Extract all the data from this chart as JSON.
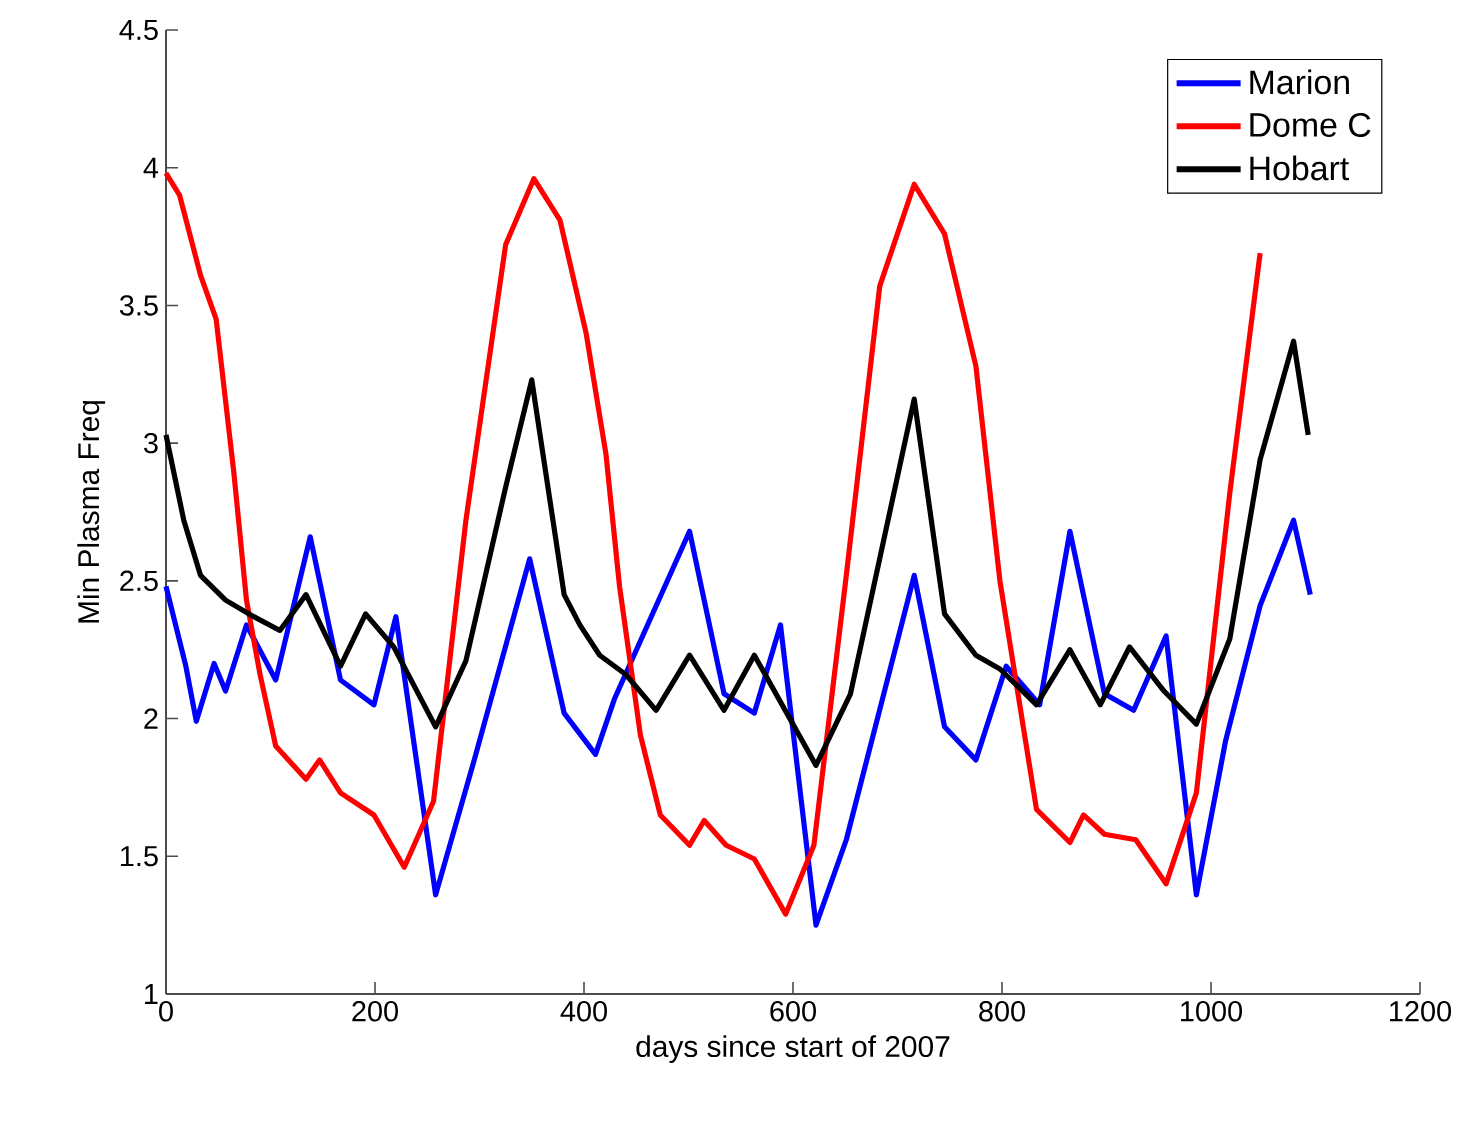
{
  "chart_data": {
    "type": "line",
    "xlabel": "days since start of 2007",
    "ylabel": "Min Plasma Freq",
    "xlim": [
      0,
      1200
    ],
    "ylim": [
      1,
      4.5
    ],
    "xticks": [
      0,
      200,
      400,
      600,
      800,
      1000,
      1200
    ],
    "yticks": [
      1,
      1.5,
      2,
      2.5,
      3,
      3.5,
      4,
      4.5
    ],
    "grid": false,
    "legend": "top right",
    "line_style": "solid",
    "marker": "none",
    "series": [
      {
        "name": "Marion",
        "color": "#0000ff",
        "x": [
          0,
          19,
          29,
          46,
          57,
          77,
          105,
          138,
          167,
          199,
          220,
          258,
          295,
          348,
          381,
          411,
          429,
          501,
          534,
          563,
          588,
          622,
          651,
          716,
          745,
          775,
          804,
          836,
          865,
          898,
          926,
          957,
          986,
          1014,
          1047,
          1079,
          1095
        ],
        "values": [
          2.48,
          2.19,
          1.99,
          2.2,
          2.1,
          2.34,
          2.14,
          2.66,
          2.14,
          2.05,
          2.37,
          1.36,
          1.85,
          2.58,
          2.02,
          1.87,
          2.07,
          2.68,
          2.09,
          2.02,
          2.34,
          1.25,
          1.56,
          2.52,
          1.97,
          1.85,
          2.19,
          2.05,
          2.68,
          2.09,
          2.03,
          2.3,
          1.36,
          1.92,
          2.41,
          2.72,
          2.45
        ]
      },
      {
        "name": "Dome C",
        "color": "#ff0000",
        "x": [
          0,
          13,
          33,
          48,
          65,
          77,
          90,
          105,
          134,
          147,
          167,
          199,
          228,
          256,
          287,
          325,
          352,
          377,
          402,
          421,
          434,
          454,
          473,
          501,
          515,
          536,
          563,
          593,
          620,
          651,
          683,
          716,
          745,
          775,
          798,
          833,
          865,
          878,
          898,
          928,
          957,
          986,
          1018,
          1047
        ],
        "values": [
          3.98,
          3.9,
          3.61,
          3.45,
          2.89,
          2.43,
          2.16,
          1.9,
          1.78,
          1.85,
          1.73,
          1.65,
          1.46,
          1.7,
          2.72,
          3.72,
          3.96,
          3.81,
          3.4,
          2.96,
          2.48,
          1.94,
          1.65,
          1.54,
          1.63,
          1.54,
          1.49,
          1.29,
          1.54,
          2.52,
          3.57,
          3.94,
          3.76,
          3.28,
          2.5,
          1.67,
          1.55,
          1.65,
          1.58,
          1.56,
          1.4,
          1.73,
          2.82,
          3.69
        ]
      },
      {
        "name": "Hobart",
        "color": "#000000",
        "x": [
          0,
          17,
          33,
          57,
          84,
          109,
          134,
          167,
          191,
          218,
          258,
          287,
          325,
          350,
          381,
          396,
          415,
          440,
          469,
          501,
          534,
          563,
          622,
          655,
          716,
          745,
          775,
          798,
          833,
          865,
          894,
          922,
          955,
          986,
          1018,
          1047,
          1079,
          1093
        ],
        "values": [
          3.03,
          2.72,
          2.52,
          2.43,
          2.37,
          2.32,
          2.45,
          2.19,
          2.38,
          2.26,
          1.97,
          2.21,
          2.84,
          3.23,
          2.45,
          2.34,
          2.23,
          2.16,
          2.03,
          2.23,
          2.03,
          2.23,
          1.83,
          2.09,
          3.16,
          2.38,
          2.23,
          2.18,
          2.05,
          2.25,
          2.05,
          2.26,
          2.1,
          1.98,
          2.29,
          2.94,
          3.37,
          3.03
        ]
      }
    ]
  }
}
